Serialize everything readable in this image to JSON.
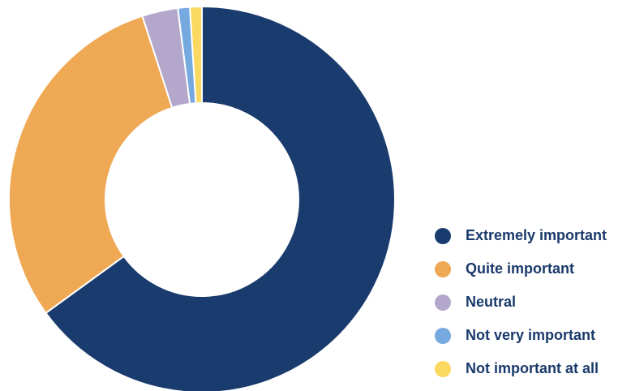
{
  "chart_data": {
    "type": "pie",
    "donut": true,
    "legend_position": "right",
    "categories": [
      "Extremely important",
      "Quite important",
      "Neutral",
      "Not very important",
      "Not important at all"
    ],
    "values": [
      65,
      30,
      3,
      1,
      1
    ],
    "colors": [
      "#1a3b6e",
      "#efa853",
      "#b3a8cc",
      "#76a9df",
      "#fbd85f"
    ]
  }
}
